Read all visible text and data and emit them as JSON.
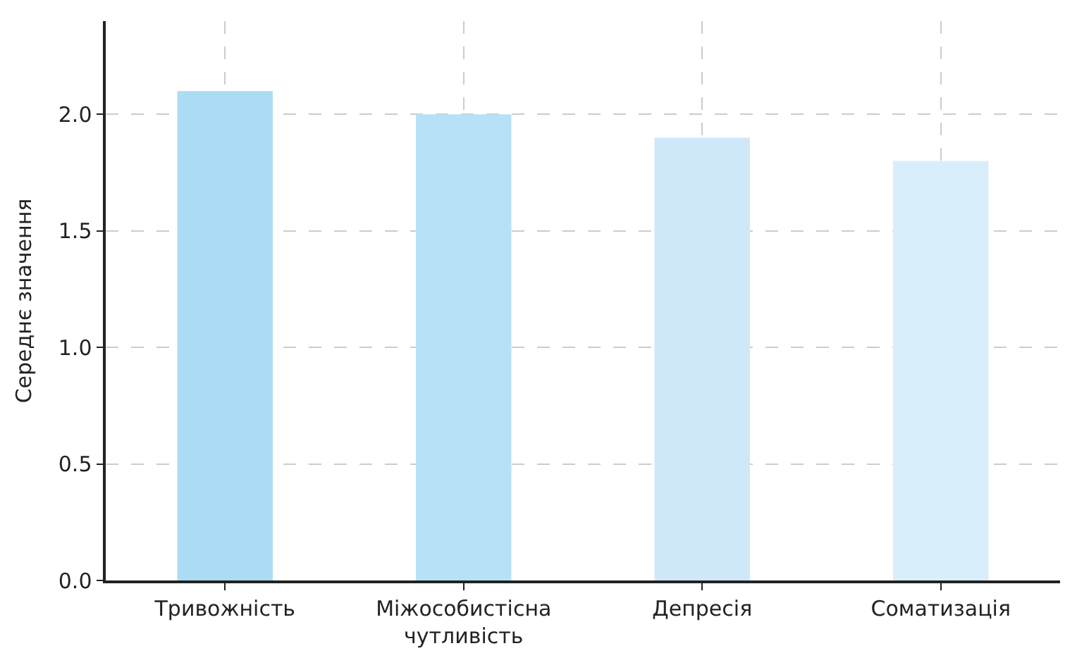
{
  "chart_data": {
    "type": "bar",
    "ylabel": "Середнє значення",
    "categories": [
      "Тривожність",
      "Міжособистісна\nчутливість",
      "Депресія",
      "Соматизація"
    ],
    "values": [
      2.1,
      2.0,
      1.9,
      1.8
    ],
    "colors": [
      "#acdcf3",
      "#b6e1f6",
      "#cfe8f9",
      "#d8eefb"
    ],
    "ylim": [
      0,
      2.4
    ],
    "yticks": [
      {
        "value": 0,
        "label": "0.0"
      },
      {
        "value": 0.5,
        "label": "0.5"
      },
      {
        "value": 1,
        "label": "1.0"
      },
      {
        "value": 1.5,
        "label": "1.5"
      },
      {
        "value": 2,
        "label": "2.0"
      }
    ],
    "grid": true
  }
}
